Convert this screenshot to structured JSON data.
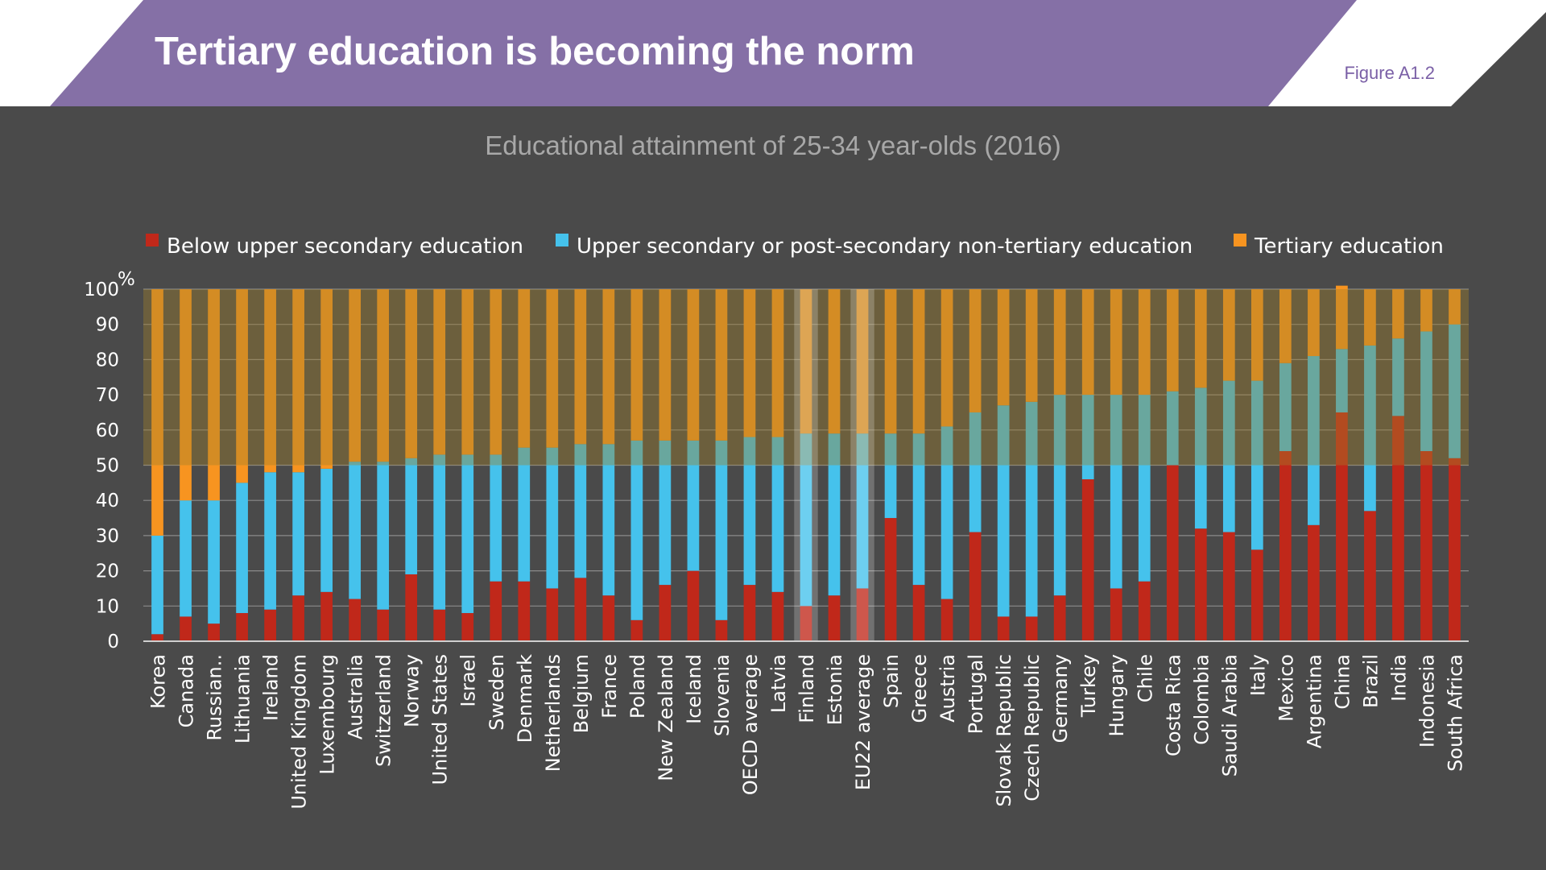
{
  "header": {
    "title": "Tertiary education is becoming the norm",
    "figure_label": "Figure A1.2",
    "banner_color": "#8570a6"
  },
  "chart_data": {
    "type": "bar",
    "stacked": true,
    "subtitle": "Educational attainment of 25-34 year-olds (2016)",
    "ylabel": "%",
    "ylim": [
      0,
      100
    ],
    "yticks": [
      0,
      10,
      20,
      30,
      40,
      50,
      60,
      70,
      80,
      90,
      100
    ],
    "grid": true,
    "legend_position": "top",
    "highlight_band_from": 50,
    "highlighted_categories": [
      "Finland",
      "EU22 average"
    ],
    "categories": [
      "Korea",
      "Canada",
      "Russian..",
      "Lithuania",
      "Ireland",
      "United Kingdom",
      "Luxembourg",
      "Australia",
      "Switzerland",
      "Norway",
      "United States",
      "Israel",
      "Sweden",
      "Denmark",
      "Netherlands",
      "Belgium",
      "France",
      "Poland",
      "New Zealand",
      "Iceland",
      "Slovenia",
      "OECD average",
      "Latvia",
      "Finland",
      "Estonia",
      "EU22 average",
      "Spain",
      "Greece",
      "Austria",
      "Portugal",
      "Slovak Republic",
      "Czech Republic",
      "Germany",
      "Turkey",
      "Hungary",
      "Chile",
      "Costa Rica",
      "Colombia",
      "Saudi Arabia",
      "Italy",
      "Mexico",
      "Argentina",
      "China",
      "Brazil",
      "India",
      "Indonesia",
      "South Africa"
    ],
    "series": [
      {
        "name": "Below upper secondary education",
        "color": "#c0281a",
        "values": [
          2,
          7,
          5,
          8,
          9,
          13,
          14,
          12,
          9,
          19,
          9,
          8,
          17,
          17,
          15,
          18,
          13,
          6,
          16,
          20,
          6,
          16,
          14,
          10,
          13,
          15,
          35,
          16,
          12,
          31,
          7,
          7,
          13,
          46,
          15,
          17,
          50,
          32,
          31,
          26,
          54,
          33,
          65,
          37,
          64,
          54,
          52
        ]
      },
      {
        "name": "Upper secondary or post-secondary non-tertiary education",
        "color": "#45c2ec",
        "values": [
          28,
          33,
          35,
          37,
          39,
          35,
          35,
          39,
          42,
          33,
          44,
          45,
          36,
          38,
          40,
          38,
          43,
          51,
          41,
          37,
          51,
          42,
          44,
          49,
          46,
          44,
          24,
          43,
          49,
          34,
          60,
          61,
          57,
          24,
          55,
          53,
          21,
          40,
          43,
          48,
          25,
          48,
          18,
          47,
          22,
          34,
          38
        ]
      },
      {
        "name": "Tertiary education",
        "color": "#f79420",
        "values": [
          70,
          60,
          60,
          55,
          52,
          52,
          51,
          49,
          49,
          48,
          47,
          47,
          47,
          45,
          45,
          44,
          44,
          43,
          43,
          43,
          43,
          42,
          42,
          41,
          41,
          41,
          41,
          41,
          39,
          35,
          33,
          32,
          30,
          30,
          30,
          30,
          29,
          28,
          26,
          26,
          21,
          19,
          18,
          16,
          14,
          12,
          10
        ]
      }
    ]
  }
}
